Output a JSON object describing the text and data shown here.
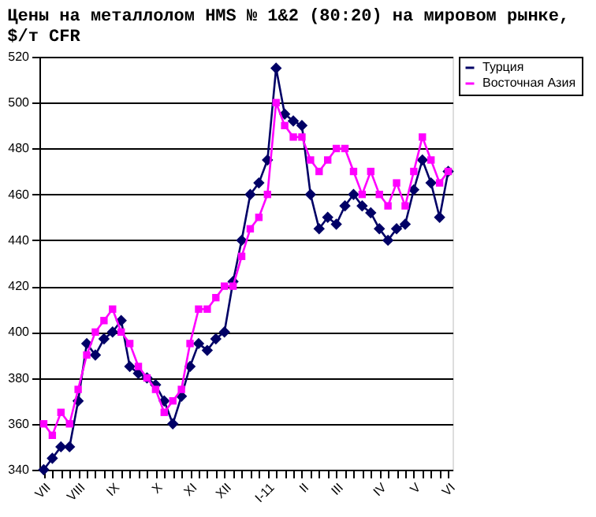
{
  "chart_data": {
    "type": "line",
    "title": "Цены на металлолом HMS № 1&2 (80:20) на мировом рынке,\n$/т CFR",
    "categories": [
      "VII",
      null,
      null,
      null,
      "VIII",
      null,
      null,
      null,
      "IX",
      null,
      null,
      null,
      null,
      "X",
      null,
      null,
      null,
      "XI",
      null,
      null,
      null,
      "XII",
      null,
      null,
      null,
      null,
      "I-11",
      null,
      null,
      null,
      "II",
      null,
      null,
      null,
      "III",
      null,
      null,
      null,
      null,
      "IV",
      null,
      null,
      null,
      "V",
      null,
      null,
      null,
      "VI"
    ],
    "series": [
      {
        "name": "Турция",
        "color": "#000066",
        "marker": "diamond",
        "values": [
          340,
          345,
          350,
          350,
          370,
          395,
          390,
          397,
          400,
          405,
          385,
          382,
          380,
          377,
          370,
          360,
          372,
          385,
          395,
          392,
          397,
          400,
          422,
          440,
          460,
          465,
          475,
          515,
          495,
          492,
          490,
          460,
          445,
          450,
          447,
          455,
          460,
          455,
          452,
          445,
          440,
          445,
          447,
          462,
          475,
          465,
          450,
          470
        ]
      },
      {
        "name": "Восточная Азия",
        "color": "#ff00ff",
        "marker": "square",
        "values": [
          360,
          355,
          365,
          360,
          375,
          390,
          400,
          405,
          410,
          400,
          395,
          385,
          380,
          375,
          365,
          370,
          375,
          395,
          410,
          410,
          415,
          420,
          420,
          433,
          445,
          450,
          460,
          500,
          490,
          485,
          485,
          475,
          470,
          475,
          480,
          480,
          470,
          460,
          470,
          460,
          455,
          465,
          455,
          470,
          485,
          475,
          465,
          470
        ]
      }
    ],
    "ylim": [
      340,
      520
    ],
    "yticks": [
      340,
      360,
      380,
      400,
      420,
      440,
      460,
      480,
      500,
      520
    ],
    "grid": "y",
    "legend": "right"
  }
}
